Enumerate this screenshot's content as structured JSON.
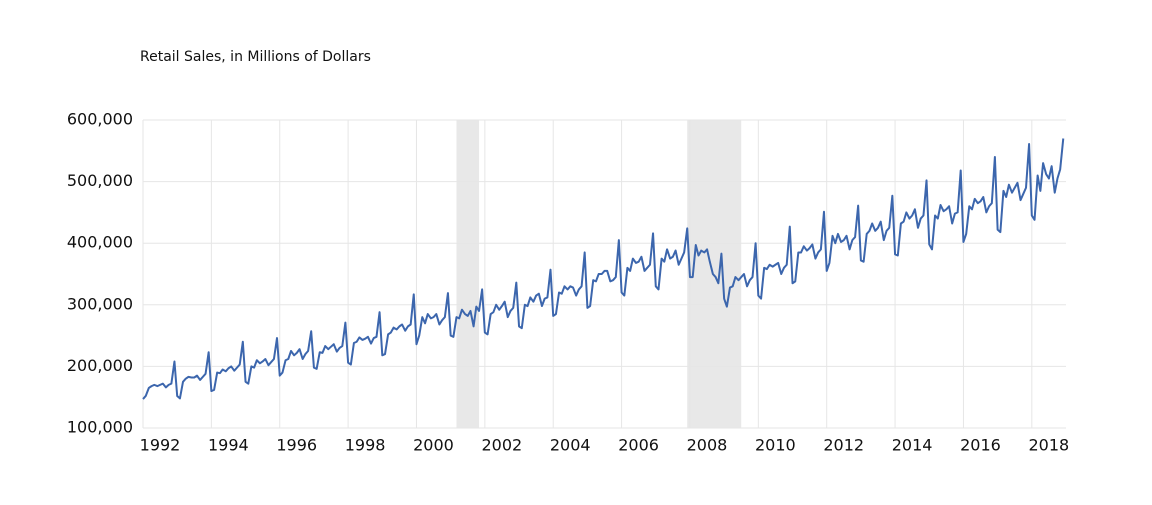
{
  "chart_data": {
    "type": "line",
    "title": "Retail Sales, in Millions of Dollars",
    "color": "#3c66ad",
    "grid": true,
    "shade_color": "#e8e8e8",
    "xlim": [
      1992,
      2019
    ],
    "xticks": [
      1992,
      1994,
      1996,
      1998,
      2000,
      2002,
      2004,
      2006,
      2008,
      2010,
      2012,
      2014,
      2016,
      2018
    ],
    "ylim": [
      100000,
      600000
    ],
    "yticks": [
      {
        "value": 100000,
        "label": "100,000"
      },
      {
        "value": 200000,
        "label": "200,000"
      },
      {
        "value": 300000,
        "label": "300,000"
      },
      {
        "value": 400000,
        "label": "400,000"
      },
      {
        "value": 500000,
        "label": "500,000"
      },
      {
        "value": 600000,
        "label": "600,000"
      }
    ],
    "recessions": [
      [
        2001.17,
        2001.83
      ],
      [
        2007.92,
        2009.5
      ]
    ],
    "x": [
      1992,
      1992.08,
      1992.17,
      1992.25,
      1992.33,
      1992.42,
      1992.5,
      1992.58,
      1992.67,
      1992.75,
      1992.83,
      1992.92,
      1993,
      1993.08,
      1993.17,
      1993.25,
      1993.33,
      1993.42,
      1993.5,
      1993.58,
      1993.67,
      1993.75,
      1993.83,
      1993.92,
      1994,
      1994.08,
      1994.17,
      1994.25,
      1994.33,
      1994.42,
      1994.5,
      1994.58,
      1994.67,
      1994.75,
      1994.83,
      1994.92,
      1995,
      1995.08,
      1995.17,
      1995.25,
      1995.33,
      1995.42,
      1995.5,
      1995.58,
      1995.67,
      1995.75,
      1995.83,
      1995.92,
      1996,
      1996.08,
      1996.17,
      1996.25,
      1996.33,
      1996.42,
      1996.5,
      1996.58,
      1996.67,
      1996.75,
      1996.83,
      1996.92,
      1997,
      1997.08,
      1997.17,
      1997.25,
      1997.33,
      1997.42,
      1997.5,
      1997.58,
      1997.67,
      1997.75,
      1997.83,
      1997.92,
      1998,
      1998.08,
      1998.17,
      1998.25,
      1998.33,
      1998.42,
      1998.5,
      1998.58,
      1998.67,
      1998.75,
      1998.83,
      1998.92,
      1999,
      1999.08,
      1999.17,
      1999.25,
      1999.33,
      1999.42,
      1999.5,
      1999.58,
      1999.67,
      1999.75,
      1999.83,
      1999.92,
      2000,
      2000.08,
      2000.17,
      2000.25,
      2000.33,
      2000.42,
      2000.5,
      2000.58,
      2000.67,
      2000.75,
      2000.83,
      2000.92,
      2001,
      2001.08,
      2001.17,
      2001.25,
      2001.33,
      2001.42,
      2001.5,
      2001.58,
      2001.67,
      2001.75,
      2001.83,
      2001.92,
      2002,
      2002.08,
      2002.17,
      2002.25,
      2002.33,
      2002.42,
      2002.5,
      2002.58,
      2002.67,
      2002.75,
      2002.83,
      2002.92,
      2003,
      2003.08,
      2003.17,
      2003.25,
      2003.33,
      2003.42,
      2003.5,
      2003.58,
      2003.67,
      2003.75,
      2003.83,
      2003.92,
      2004,
      2004.08,
      2004.17,
      2004.25,
      2004.33,
      2004.42,
      2004.5,
      2004.58,
      2004.67,
      2004.75,
      2004.83,
      2004.92,
      2005,
      2005.08,
      2005.17,
      2005.25,
      2005.33,
      2005.42,
      2005.5,
      2005.58,
      2005.67,
      2005.75,
      2005.83,
      2005.92,
      2006,
      2006.08,
      2006.17,
      2006.25,
      2006.33,
      2006.42,
      2006.5,
      2006.58,
      2006.67,
      2006.75,
      2006.83,
      2006.92,
      2007,
      2007.08,
      2007.17,
      2007.25,
      2007.33,
      2007.42,
      2007.5,
      2007.58,
      2007.67,
      2007.75,
      2007.83,
      2007.92,
      2008,
      2008.08,
      2008.17,
      2008.25,
      2008.33,
      2008.42,
      2008.5,
      2008.58,
      2008.67,
      2008.75,
      2008.83,
      2008.92,
      2009,
      2009.08,
      2009.17,
      2009.25,
      2009.33,
      2009.42,
      2009.5,
      2009.58,
      2009.67,
      2009.75,
      2009.83,
      2009.92,
      2010,
      2010.08,
      2010.17,
      2010.25,
      2010.33,
      2010.42,
      2010.5,
      2010.58,
      2010.67,
      2010.75,
      2010.83,
      2010.92,
      2011,
      2011.08,
      2011.17,
      2011.25,
      2011.33,
      2011.42,
      2011.5,
      2011.58,
      2011.67,
      2011.75,
      2011.83,
      2011.92,
      2012,
      2012.08,
      2012.17,
      2012.25,
      2012.33,
      2012.42,
      2012.5,
      2012.58,
      2012.67,
      2012.75,
      2012.83,
      2012.92,
      2013,
      2013.08,
      2013.17,
      2013.25,
      2013.33,
      2013.42,
      2013.5,
      2013.58,
      2013.67,
      2013.75,
      2013.83,
      2013.92,
      2014,
      2014.08,
      2014.17,
      2014.25,
      2014.33,
      2014.42,
      2014.5,
      2014.58,
      2014.67,
      2014.75,
      2014.83,
      2014.92,
      2015,
      2015.08,
      2015.17,
      2015.25,
      2015.33,
      2015.42,
      2015.5,
      2015.58,
      2015.67,
      2015.75,
      2015.83,
      2015.92,
      2016,
      2016.08,
      2016.17,
      2016.25,
      2016.33,
      2016.42,
      2016.5,
      2016.58,
      2016.67,
      2016.75,
      2016.83,
      2016.92,
      2017,
      2017.08,
      2017.17,
      2017.25,
      2017.33,
      2017.42,
      2017.5,
      2017.58,
      2017.67,
      2017.75,
      2017.83,
      2017.92,
      2018,
      2018.08,
      2018.17,
      2018.25,
      2018.33,
      2018.42,
      2018.5,
      2018.58,
      2018.67,
      2018.75,
      2018.83,
      2018.92
    ],
    "values": [
      147000,
      152000,
      165000,
      168000,
      170000,
      168000,
      170000,
      172000,
      166000,
      170000,
      172000,
      208000,
      152000,
      148000,
      175000,
      180000,
      183000,
      182000,
      182000,
      185000,
      178000,
      183000,
      188000,
      223000,
      160000,
      162000,
      190000,
      189000,
      195000,
      192000,
      197000,
      200000,
      193000,
      198000,
      203000,
      240000,
      175000,
      172000,
      200000,
      198000,
      210000,
      205000,
      208000,
      212000,
      202000,
      207000,
      212000,
      246000,
      185000,
      190000,
      210000,
      212000,
      225000,
      218000,
      222000,
      228000,
      212000,
      220000,
      225000,
      257000,
      198000,
      196000,
      223000,
      222000,
      233000,
      228000,
      232000,
      236000,
      224000,
      230000,
      233000,
      271000,
      206000,
      203000,
      238000,
      240000,
      247000,
      243000,
      245000,
      248000,
      237000,
      246000,
      248000,
      288000,
      218000,
      220000,
      252000,
      255000,
      263000,
      260000,
      265000,
      268000,
      258000,
      265000,
      268000,
      317000,
      236000,
      250000,
      280000,
      270000,
      285000,
      278000,
      280000,
      285000,
      268000,
      275000,
      280000,
      319000,
      250000,
      248000,
      280000,
      278000,
      292000,
      285000,
      282000,
      290000,
      265000,
      297000,
      290000,
      325000,
      255000,
      252000,
      285000,
      288000,
      300000,
      292000,
      298000,
      305000,
      280000,
      290000,
      295000,
      336000,
      265000,
      262000,
      300000,
      298000,
      312000,
      305000,
      315000,
      318000,
      298000,
      310000,
      312000,
      357000,
      282000,
      285000,
      320000,
      318000,
      330000,
      325000,
      330000,
      328000,
      315000,
      325000,
      330000,
      385000,
      295000,
      298000,
      340000,
      338000,
      350000,
      350000,
      355000,
      355000,
      338000,
      340000,
      345000,
      405000,
      320000,
      315000,
      360000,
      355000,
      375000,
      368000,
      370000,
      378000,
      355000,
      360000,
      365000,
      416000,
      330000,
      325000,
      375000,
      370000,
      390000,
      375000,
      378000,
      388000,
      365000,
      375000,
      385000,
      424000,
      345000,
      345000,
      397000,
      380000,
      388000,
      385000,
      390000,
      370000,
      350000,
      345000,
      335000,
      383000,
      310000,
      297000,
      328000,
      330000,
      345000,
      340000,
      345000,
      350000,
      330000,
      340000,
      345000,
      400000,
      315000,
      310000,
      360000,
      358000,
      365000,
      362000,
      365000,
      368000,
      350000,
      360000,
      365000,
      427000,
      335000,
      338000,
      385000,
      385000,
      395000,
      388000,
      392000,
      398000,
      375000,
      385000,
      390000,
      451000,
      355000,
      368000,
      412000,
      400000,
      415000,
      402000,
      405000,
      412000,
      390000,
      405000,
      410000,
      461000,
      372000,
      370000,
      415000,
      420000,
      432000,
      420000,
      425000,
      435000,
      405000,
      420000,
      425000,
      477000,
      382000,
      380000,
      432000,
      435000,
      450000,
      440000,
      445000,
      455000,
      425000,
      440000,
      445000,
      502000,
      398000,
      390000,
      445000,
      440000,
      462000,
      452000,
      455000,
      460000,
      432000,
      448000,
      450000,
      518000,
      402000,
      415000,
      460000,
      455000,
      472000,
      465000,
      468000,
      475000,
      450000,
      460000,
      465000,
      540000,
      422000,
      418000,
      485000,
      475000,
      495000,
      482000,
      490000,
      498000,
      470000,
      480000,
      490000,
      561000,
      445000,
      438000,
      510000,
      485000,
      530000,
      512000,
      505000,
      525000,
      482000,
      505000,
      520000,
      570000
    ]
  }
}
